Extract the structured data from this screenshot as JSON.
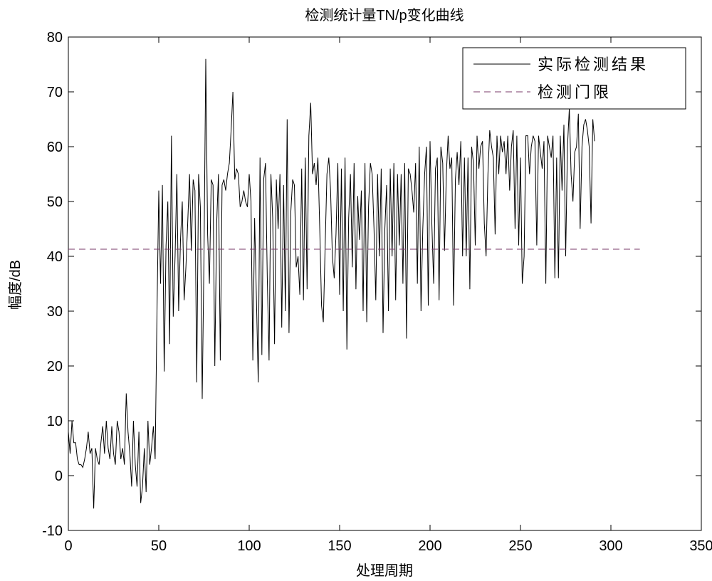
{
  "chart_data": {
    "type": "line",
    "title": "检测统计量TN/p变化曲线",
    "xlabel": "处理周期",
    "ylabel": "幅度/dB",
    "xlim": [
      0,
      350
    ],
    "ylim": [
      -10,
      80
    ],
    "xticks": [
      0,
      50,
      100,
      150,
      200,
      250,
      300,
      350
    ],
    "yticks": [
      -10,
      0,
      10,
      20,
      30,
      40,
      50,
      60,
      70,
      80
    ],
    "grid": false,
    "legend_position": "top-right",
    "series": [
      {
        "name": "实际检测结果",
        "style": "solid",
        "color": "#000000",
        "x_start": 0,
        "x_step": 1,
        "y": [
          8,
          4,
          10,
          6,
          6,
          3,
          2,
          2,
          1.5,
          3,
          5,
          8,
          4,
          5,
          -6,
          5,
          3,
          2,
          6,
          9,
          4,
          10,
          5,
          3,
          9,
          4,
          2,
          10,
          8,
          3,
          5,
          2,
          15,
          8,
          4,
          -2,
          10,
          2,
          -2,
          8,
          -5,
          -2,
          5,
          -3,
          10,
          2,
          5,
          9,
          3,
          30,
          52,
          35,
          53,
          19,
          42,
          50,
          24,
          62,
          29,
          40,
          55,
          30,
          43,
          50,
          32,
          38,
          46,
          55,
          41,
          54,
          52,
          17,
          55,
          49,
          14,
          40,
          76,
          44,
          35,
          54,
          53,
          20,
          46,
          55,
          21,
          53,
          54,
          52,
          55,
          57,
          63,
          70,
          54,
          56,
          55,
          49,
          50,
          52,
          50,
          49,
          55,
          50,
          21,
          47,
          32,
          17,
          58,
          22,
          54,
          57,
          36,
          21,
          55,
          47,
          24,
          54,
          45,
          55,
          27,
          53,
          30,
          65,
          26,
          48,
          54,
          53,
          38,
          40,
          33,
          56,
          32,
          58,
          34,
          62,
          68,
          55,
          57,
          53,
          58,
          45,
          31,
          28,
          42,
          55,
          58,
          52,
          40,
          36,
          44,
          57,
          33,
          56,
          30,
          58,
          23,
          47,
          55,
          38,
          57,
          34,
          51,
          43,
          52,
          30,
          57,
          28,
          49,
          57,
          55,
          45,
          32,
          55,
          40,
          56,
          26,
          45,
          53,
          30,
          56,
          40,
          57,
          32,
          55,
          42,
          55,
          35,
          57,
          25,
          56,
          55,
          52,
          48,
          57,
          35,
          60,
          30,
          45,
          55,
          60,
          31,
          61,
          46,
          35,
          56,
          58,
          32,
          60,
          57,
          41,
          55,
          62,
          56,
          58,
          31,
          54,
          59,
          53,
          61,
          40,
          58,
          40,
          58,
          34,
          60,
          57,
          42,
          62,
          56,
          60,
          61,
          46,
          40,
          55,
          63,
          60,
          58,
          44,
          62,
          55,
          62,
          59,
          61,
          55,
          62,
          52,
          60,
          63,
          45,
          62,
          42,
          58,
          35,
          40,
          62,
          62,
          55,
          60,
          62,
          61,
          42,
          62,
          59,
          56,
          61,
          35,
          62,
          60,
          58,
          62,
          36,
          58,
          36,
          62,
          52,
          64,
          40,
          60,
          67,
          55,
          50,
          59,
          60,
          66,
          45,
          60,
          64,
          65,
          63,
          60,
          46,
          65,
          61
        ]
      },
      {
        "name": "检测门限",
        "style": "dashed",
        "color": "#7a3a6a",
        "x": [
          0,
          316
        ],
        "y": [
          41.3,
          41.3
        ]
      }
    ]
  }
}
